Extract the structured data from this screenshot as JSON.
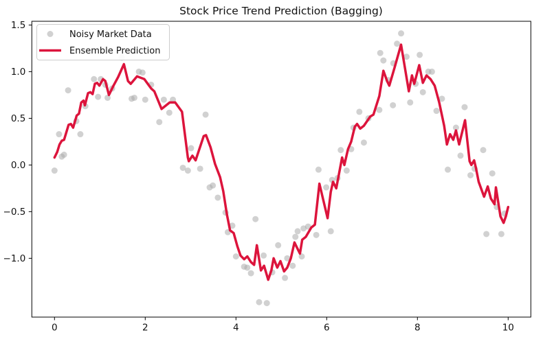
{
  "title": "Stock Price Trend Prediction (Bagging)",
  "legend": {
    "position": "upper left",
    "items": [
      {
        "label": "Noisy Market Data",
        "marker": "dot",
        "color": "#c3c3c3"
      },
      {
        "label": "Ensemble Prediction",
        "marker": "line",
        "color": "#dc143c"
      }
    ]
  },
  "colors": {
    "background": "#ffffff",
    "spine": "#000000",
    "scatter": "#ababab",
    "line": "#dc143c",
    "tick_text": "#111111"
  },
  "chart_data": {
    "type": "scatter",
    "title": "Stock Price Trend Prediction (Bagging)",
    "xlabel": "",
    "ylabel": "",
    "grid": false,
    "legend_position": "upper left",
    "xlim": [
      -0.5,
      10.5
    ],
    "ylim": [
      -1.63,
      1.54
    ],
    "x_ticks": [
      0,
      2,
      4,
      6,
      8,
      10
    ],
    "x_tick_labels": [
      "0",
      "2",
      "4",
      "6",
      "8",
      "10"
    ],
    "y_ticks": [
      -1.0,
      -0.5,
      0.0,
      0.5,
      1.0,
      1.5
    ],
    "y_tick_labels": [
      "−1.0",
      "−0.5",
      "0.0",
      "0.5",
      "1.0",
      "1.5"
    ],
    "series": [
      {
        "name": "Noisy Market Data",
        "type": "scatter",
        "color": "#ababab",
        "opacity": 0.55,
        "marker_radius": 4.5,
        "points": [
          [
            0.0,
            -0.06
          ],
          [
            0.1,
            0.33
          ],
          [
            0.16,
            0.09
          ],
          [
            0.21,
            0.11
          ],
          [
            0.3,
            0.8
          ],
          [
            0.48,
            0.47
          ],
          [
            0.57,
            0.33
          ],
          [
            0.68,
            0.63
          ],
          [
            0.87,
            0.92
          ],
          [
            0.96,
            0.73
          ],
          [
            1.02,
            0.92
          ],
          [
            1.12,
            0.86
          ],
          [
            1.17,
            0.72
          ],
          [
            1.27,
            0.82
          ],
          [
            1.48,
            1.15
          ],
          [
            1.7,
            0.71
          ],
          [
            1.76,
            0.72
          ],
          [
            1.86,
            1.0
          ],
          [
            1.94,
            0.99
          ],
          [
            2.0,
            0.7
          ],
          [
            2.13,
            0.86
          ],
          [
            2.31,
            0.46
          ],
          [
            2.41,
            0.7
          ],
          [
            2.53,
            0.56
          ],
          [
            2.61,
            0.7
          ],
          [
            2.83,
            -0.03
          ],
          [
            2.94,
            -0.06
          ],
          [
            3.01,
            0.18
          ],
          [
            3.21,
            -0.04
          ],
          [
            3.33,
            0.54
          ],
          [
            3.42,
            -0.24
          ],
          [
            3.49,
            -0.22
          ],
          [
            3.6,
            -0.35
          ],
          [
            3.77,
            -0.51
          ],
          [
            3.82,
            -0.72
          ],
          [
            3.92,
            -0.65
          ],
          [
            4.0,
            -0.98
          ],
          [
            4.18,
            -1.09
          ],
          [
            4.25,
            -1.1
          ],
          [
            4.33,
            -1.16
          ],
          [
            4.43,
            -0.58
          ],
          [
            4.51,
            -1.47
          ],
          [
            4.61,
            -0.97
          ],
          [
            4.68,
            -1.48
          ],
          [
            4.8,
            -1.15
          ],
          [
            4.93,
            -0.86
          ],
          [
            5.08,
            -1.21
          ],
          [
            5.13,
            -1.0
          ],
          [
            5.25,
            -1.08
          ],
          [
            5.31,
            -0.77
          ],
          [
            5.36,
            -0.71
          ],
          [
            5.45,
            -0.98
          ],
          [
            5.49,
            -0.68
          ],
          [
            5.59,
            -0.66
          ],
          [
            5.77,
            -0.75
          ],
          [
            5.82,
            -0.05
          ],
          [
            5.99,
            -0.24
          ],
          [
            6.09,
            -0.71
          ],
          [
            6.12,
            -0.16
          ],
          [
            6.24,
            -0.14
          ],
          [
            6.31,
            0.16
          ],
          [
            6.44,
            -0.06
          ],
          [
            6.54,
            0.17
          ],
          [
            6.59,
            0.4
          ],
          [
            6.72,
            0.57
          ],
          [
            6.82,
            0.24
          ],
          [
            6.92,
            0.5
          ],
          [
            7.16,
            0.59
          ],
          [
            7.18,
            1.2
          ],
          [
            7.25,
            1.12
          ],
          [
            7.36,
            0.91
          ],
          [
            7.46,
            0.64
          ],
          [
            7.47,
            1.09
          ],
          [
            7.55,
            1.3
          ],
          [
            7.64,
            1.41
          ],
          [
            7.76,
            1.16
          ],
          [
            7.84,
            0.67
          ],
          [
            7.96,
            0.87
          ],
          [
            8.05,
            1.18
          ],
          [
            8.12,
            0.78
          ],
          [
            8.24,
            1.0
          ],
          [
            8.32,
            1.0
          ],
          [
            8.42,
            0.58
          ],
          [
            8.54,
            0.71
          ],
          [
            8.67,
            -0.05
          ],
          [
            8.85,
            0.4
          ],
          [
            8.95,
            0.1
          ],
          [
            9.04,
            0.62
          ],
          [
            9.17,
            -0.11
          ],
          [
            9.26,
            -0.04
          ],
          [
            9.45,
            0.16
          ],
          [
            9.52,
            -0.74
          ],
          [
            9.65,
            -0.09
          ],
          [
            9.75,
            -0.45
          ],
          [
            9.85,
            -0.74
          ],
          [
            9.92,
            -0.52
          ]
        ]
      },
      {
        "name": "Ensemble Prediction",
        "type": "line",
        "color": "#dc143c",
        "linewidth": 3.5,
        "points": [
          [
            0.0,
            0.08
          ],
          [
            0.06,
            0.14
          ],
          [
            0.11,
            0.22
          ],
          [
            0.16,
            0.26
          ],
          [
            0.21,
            0.27
          ],
          [
            0.31,
            0.43
          ],
          [
            0.36,
            0.44
          ],
          [
            0.41,
            0.4
          ],
          [
            0.49,
            0.53
          ],
          [
            0.54,
            0.55
          ],
          [
            0.59,
            0.67
          ],
          [
            0.64,
            0.69
          ],
          [
            0.67,
            0.64
          ],
          [
            0.74,
            0.77
          ],
          [
            0.79,
            0.78
          ],
          [
            0.84,
            0.76
          ],
          [
            0.89,
            0.87
          ],
          [
            0.94,
            0.88
          ],
          [
            0.99,
            0.85
          ],
          [
            1.07,
            0.92
          ],
          [
            1.12,
            0.9
          ],
          [
            1.2,
            0.75
          ],
          [
            1.3,
            0.85
          ],
          [
            1.4,
            0.94
          ],
          [
            1.53,
            1.08
          ],
          [
            1.62,
            0.9
          ],
          [
            1.68,
            0.87
          ],
          [
            1.82,
            0.95
          ],
          [
            1.98,
            0.92
          ],
          [
            2.13,
            0.82
          ],
          [
            2.2,
            0.79
          ],
          [
            2.36,
            0.6
          ],
          [
            2.54,
            0.67
          ],
          [
            2.66,
            0.67
          ],
          [
            2.81,
            0.57
          ],
          [
            2.94,
            0.08
          ],
          [
            2.96,
            0.04
          ],
          [
            3.04,
            0.1
          ],
          [
            3.11,
            0.05
          ],
          [
            3.29,
            0.31
          ],
          [
            3.34,
            0.32
          ],
          [
            3.44,
            0.19
          ],
          [
            3.54,
            0.01
          ],
          [
            3.65,
            -0.13
          ],
          [
            3.72,
            -0.28
          ],
          [
            3.8,
            -0.53
          ],
          [
            3.87,
            -0.7
          ],
          [
            3.95,
            -0.73
          ],
          [
            4.03,
            -0.87
          ],
          [
            4.1,
            -0.97
          ],
          [
            4.18,
            -1.01
          ],
          [
            4.25,
            -0.98
          ],
          [
            4.33,
            -1.04
          ],
          [
            4.4,
            -1.07
          ],
          [
            4.46,
            -0.86
          ],
          [
            4.55,
            -1.13
          ],
          [
            4.62,
            -1.08
          ],
          [
            4.71,
            -1.23
          ],
          [
            4.78,
            -1.13
          ],
          [
            4.83,
            -1.0
          ],
          [
            4.91,
            -1.1
          ],
          [
            4.98,
            -1.03
          ],
          [
            5.06,
            -1.14
          ],
          [
            5.13,
            -1.1
          ],
          [
            5.21,
            -1.0
          ],
          [
            5.29,
            -0.83
          ],
          [
            5.34,
            -0.88
          ],
          [
            5.41,
            -0.95
          ],
          [
            5.46,
            -0.8
          ],
          [
            5.54,
            -0.77
          ],
          [
            5.66,
            -0.67
          ],
          [
            5.74,
            -0.64
          ],
          [
            5.84,
            -0.2
          ],
          [
            6.02,
            -0.57
          ],
          [
            6.09,
            -0.29
          ],
          [
            6.14,
            -0.18
          ],
          [
            6.21,
            -0.25
          ],
          [
            6.34,
            0.08
          ],
          [
            6.39,
            0.0
          ],
          [
            6.47,
            0.17
          ],
          [
            6.54,
            0.25
          ],
          [
            6.62,
            0.41
          ],
          [
            6.67,
            0.44
          ],
          [
            6.74,
            0.39
          ],
          [
            6.82,
            0.42
          ],
          [
            6.96,
            0.52
          ],
          [
            7.03,
            0.54
          ],
          [
            7.16,
            0.74
          ],
          [
            7.25,
            1.01
          ],
          [
            7.33,
            0.9
          ],
          [
            7.38,
            0.85
          ],
          [
            7.5,
            1.05
          ],
          [
            7.64,
            1.29
          ],
          [
            7.81,
            0.79
          ],
          [
            7.88,
            0.96
          ],
          [
            7.93,
            0.87
          ],
          [
            8.04,
            1.07
          ],
          [
            8.12,
            0.88
          ],
          [
            8.2,
            0.96
          ],
          [
            8.29,
            0.92
          ],
          [
            8.38,
            0.85
          ],
          [
            8.48,
            0.67
          ],
          [
            8.59,
            0.42
          ],
          [
            8.65,
            0.22
          ],
          [
            8.72,
            0.33
          ],
          [
            8.79,
            0.27
          ],
          [
            8.85,
            0.37
          ],
          [
            8.92,
            0.22
          ],
          [
            9.05,
            0.48
          ],
          [
            9.15,
            0.04
          ],
          [
            9.19,
            0.0
          ],
          [
            9.25,
            0.05
          ],
          [
            9.29,
            -0.03
          ],
          [
            9.35,
            -0.18
          ],
          [
            9.47,
            -0.34
          ],
          [
            9.55,
            -0.23
          ],
          [
            9.62,
            -0.36
          ],
          [
            9.7,
            -0.42
          ],
          [
            9.73,
            -0.24
          ],
          [
            9.83,
            -0.55
          ],
          [
            9.9,
            -0.62
          ],
          [
            9.95,
            -0.55
          ],
          [
            10.0,
            -0.45
          ]
        ]
      }
    ]
  }
}
